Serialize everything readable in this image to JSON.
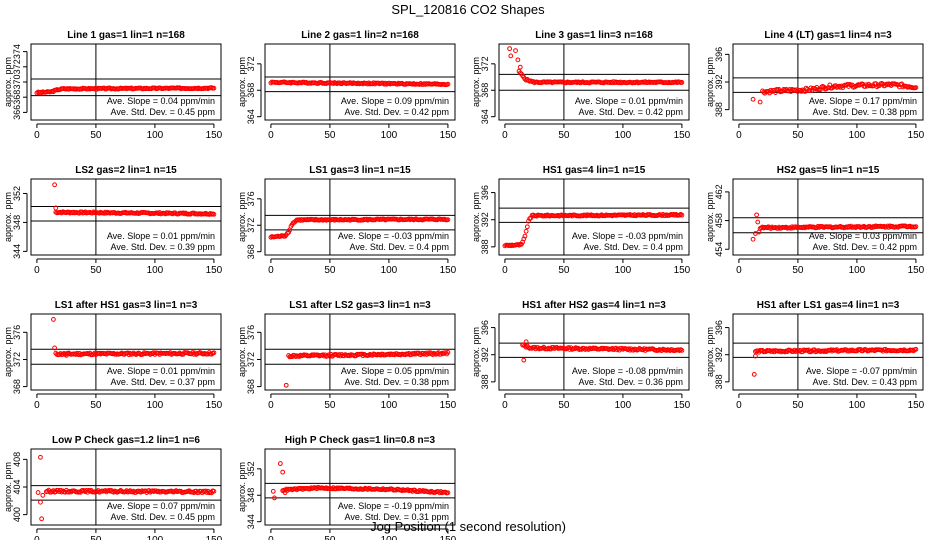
{
  "figure": {
    "title": "SPL_120816  CO2 Shapes",
    "xlabel": "Jog Position (1 second resolution)",
    "ylabel": "approx. ppm",
    "x_ticks": [
      0,
      50,
      100,
      150
    ],
    "x_tick_labels": [
      "0",
      "50",
      "100",
      "150"
    ]
  },
  "chart_data": [
    {
      "type": "scatter",
      "title": "Line 1 gas=1 lin=1 n=168",
      "ylim": [
        365,
        375
      ],
      "yticks": [
        366,
        368,
        370,
        372,
        374
      ],
      "hlines": [
        368.2,
        370.4
      ],
      "vline": 50,
      "series": [
        {
          "segments": [
            [
              0,
              368.6
            ],
            [
              12,
              368.7
            ],
            [
              18,
              369.0
            ],
            [
              22,
              369.1
            ],
            [
              150,
              369.2
            ]
          ],
          "noise": 0.08,
          "x_start": 0
        }
      ],
      "extra_points": [],
      "slope_text": "Ave. Slope = 0.04  ppm/min",
      "std_text": "Ave. Std. Dev. = 0.45  ppm"
    },
    {
      "type": "scatter",
      "title": "Line 2 gas=1 lin=2 n=168",
      "ylim": [
        363.5,
        375
      ],
      "yticks": [
        364,
        368,
        372
      ],
      "hlines": [
        367.8,
        370.0
      ],
      "vline": 50,
      "series": [
        {
          "segments": [
            [
              0,
              369.2
            ],
            [
              150,
              368.9
            ]
          ],
          "noise": 0.1,
          "x_start": 0
        }
      ],
      "extra_points": [],
      "slope_text": "Ave. Slope = 0.09  ppm/min",
      "std_text": "Ave. Std. Dev. = 0.42  ppm"
    },
    {
      "type": "scatter",
      "title": "Line 3 gas=1 lin=3 n=168",
      "ylim": [
        363.5,
        375
      ],
      "yticks": [
        364,
        368,
        372
      ],
      "hlines": [
        368.0,
        370.4
      ],
      "vline": 50,
      "series": [
        {
          "segments": [
            [
              12,
              370.8
            ],
            [
              18,
              369.6
            ],
            [
              25,
              369.2
            ],
            [
              150,
              369.2
            ]
          ],
          "noise": 0.1,
          "x_start": 12
        }
      ],
      "extra_points": [
        [
          4,
          374.3
        ],
        [
          5,
          373.2
        ],
        [
          9,
          374.0
        ],
        [
          11,
          372.6
        ],
        [
          13,
          371.5
        ]
      ],
      "slope_text": "Ave. Slope = 0.01  ppm/min",
      "std_text": "Ave. Std. Dev. = 0.42  ppm"
    },
    {
      "type": "scatter",
      "title": "Line 4 (LT) gas=1 lin=4 n=3",
      "ylim": [
        386.5,
        397.5
      ],
      "yticks": [
        388,
        392,
        396
      ],
      "hlines": [
        390.5,
        392.6
      ],
      "vline": 50,
      "series": [
        {
          "segments": [
            [
              20,
              390.6
            ],
            [
              60,
              390.9
            ],
            [
              80,
              391.4
            ],
            [
              130,
              391.6
            ],
            [
              150,
              391.3
            ]
          ],
          "noise": 0.25,
          "x_start": 20
        }
      ],
      "extra_points": [
        [
          12,
          389.5
        ],
        [
          18,
          389.1
        ]
      ],
      "slope_text": "Ave. Slope = 0.17  ppm/min",
      "std_text": "Ave. Std. Dev. = 0.38  ppm"
    },
    {
      "type": "scatter",
      "title": "LS2 gas=2 lin=1 n=15",
      "ylim": [
        343.5,
        354
      ],
      "yticks": [
        344,
        348,
        352
      ],
      "hlines": [
        348.2,
        350.2
      ],
      "vline": 50,
      "series": [
        {
          "segments": [
            [
              16,
              349.4
            ],
            [
              150,
              349.2
            ]
          ],
          "noise": 0.1,
          "x_start": 16
        }
      ],
      "extra_points": [
        [
          15,
          353.2
        ],
        [
          16,
          350.0
        ]
      ],
      "slope_text": "Ave. Slope = 0.01  ppm/min",
      "std_text": "Ave. Std. Dev. = 0.39  ppm"
    },
    {
      "type": "scatter",
      "title": "LS1 gas=3 lin=1 n=15",
      "ylim": [
        367.5,
        379
      ],
      "yticks": [
        368,
        372,
        376
      ],
      "hlines": [
        371.3,
        373.5
      ],
      "vline": 50,
      "series": [
        {
          "segments": [
            [
              0,
              370.2
            ],
            [
              12,
              370.4
            ],
            [
              15,
              371.0
            ],
            [
              18,
              372.2
            ],
            [
              22,
              372.8
            ],
            [
              150,
              372.9
            ]
          ],
          "noise": 0.1,
          "x_start": 0
        }
      ],
      "extra_points": [],
      "slope_text": "Ave. Slope = -0.03  ppm/min",
      "std_text": "Ave. Std. Dev. = 0.4  ppm"
    },
    {
      "type": "scatter",
      "title": "HS1 gas=4 lin=1 n=15",
      "ylim": [
        386.8,
        398
      ],
      "yticks": [
        388,
        392,
        396
      ],
      "hlines": [
        391.6,
        393.7
      ],
      "vline": 50,
      "series": [
        {
          "segments": [
            [
              0,
              388.2
            ],
            [
              14,
              388.3
            ],
            [
              17,
              389.5
            ],
            [
              20,
              391.8
            ],
            [
              23,
              392.6
            ],
            [
              150,
              392.7
            ]
          ],
          "noise": 0.1,
          "x_start": 0
        }
      ],
      "extra_points": [],
      "slope_text": "Ave. Slope = -0.03  ppm/min",
      "std_text": "Ave. Std. Dev. = 0.4  ppm"
    },
    {
      "type": "scatter",
      "title": "HS2 gas=5 lin=1 n=15",
      "ylim": [
        453.2,
        463.8
      ],
      "yticks": [
        454,
        458,
        462
      ],
      "hlines": [
        456.3,
        458.4
      ],
      "vline": 50,
      "series": [
        {
          "segments": [
            [
              18,
              457.0
            ],
            [
              150,
              457.2
            ]
          ],
          "noise": 0.12,
          "x_start": 18
        }
      ],
      "extra_points": [
        [
          12,
          455.4
        ],
        [
          14,
          456.2
        ],
        [
          15,
          458.8
        ],
        [
          16,
          457.8
        ],
        [
          17,
          456.4
        ]
      ],
      "slope_text": "Ave. Slope = 0.03  ppm/min",
      "std_text": "Ave. Std. Dev. = 0.42  ppm"
    },
    {
      "type": "scatter",
      "title": "LS1 after HS1 gas=3 lin=1 n=3",
      "ylim": [
        367.5,
        378.7
      ],
      "yticks": [
        368,
        372,
        376
      ],
      "hlines": [
        371.3,
        373.5
      ],
      "vline": 50,
      "series": [
        {
          "segments": [
            [
              16,
              372.8
            ],
            [
              150,
              372.9
            ]
          ],
          "noise": 0.15,
          "x_start": 16
        }
      ],
      "extra_points": [
        [
          14,
          377.9
        ],
        [
          15,
          373.7
        ],
        [
          25,
          372.6
        ]
      ],
      "slope_text": "Ave. Slope = 0.01  ppm/min",
      "std_text": "Ave. Std. Dev. = 0.37  ppm"
    },
    {
      "type": "scatter",
      "title": "LS1 after LS2 gas=3 lin=1 n=3",
      "ylim": [
        367.5,
        378.7
      ],
      "yticks": [
        368,
        372,
        376
      ],
      "hlines": [
        371.3,
        373.5
      ],
      "vline": 50,
      "series": [
        {
          "segments": [
            [
              15,
              372.5
            ],
            [
              150,
              372.9
            ]
          ],
          "noise": 0.15,
          "x_start": 15
        }
      ],
      "extra_points": [
        [
          13,
          368.2
        ]
      ],
      "slope_text": "Ave. Slope = 0.05  ppm/min",
      "std_text": "Ave. Std. Dev. = 0.38  ppm"
    },
    {
      "type": "scatter",
      "title": "HS1 after HS2 gas=4 lin=1 n=3",
      "ylim": [
        386.8,
        398
      ],
      "yticks": [
        388,
        392,
        396
      ],
      "hlines": [
        391.6,
        393.7
      ],
      "vline": 50,
      "series": [
        {
          "segments": [
            [
              15,
              393.4
            ],
            [
              22,
              393.0
            ],
            [
              150,
              392.7
            ]
          ],
          "noise": 0.15,
          "x_start": 15
        }
      ],
      "extra_points": [
        [
          16,
          391.2
        ],
        [
          18,
          393.9
        ]
      ],
      "slope_text": "Ave. Slope = -0.08  ppm/min",
      "std_text": "Ave. Std. Dev. = 0.36  ppm"
    },
    {
      "type": "scatter",
      "title": "HS1 after LS1 gas=4 lin=1 n=3",
      "ylim": [
        386.8,
        398
      ],
      "yticks": [
        388,
        392,
        396
      ],
      "hlines": [
        391.6,
        393.7
      ],
      "vline": 50,
      "series": [
        {
          "segments": [
            [
              14,
              392.5
            ],
            [
              150,
              392.7
            ]
          ],
          "noise": 0.15,
          "x_start": 14
        }
      ],
      "extra_points": [
        [
          13,
          389.1
        ],
        [
          14,
          391.8
        ]
      ],
      "slope_text": "Ave. Slope = -0.07  ppm/min",
      "std_text": "Ave. Std. Dev. = 0.43  ppm"
    },
    {
      "type": "scatter",
      "title": "Low P Check gas=1.2 lin=1 n=6",
      "ylim": [
        398.5,
        409.5
      ],
      "yticks": [
        400,
        404,
        408
      ],
      "hlines": [
        402.1,
        404.2
      ],
      "vline": 50,
      "series": [
        {
          "segments": [
            [
              8,
              403.4
            ],
            [
              150,
              403.3
            ]
          ],
          "noise": 0.15,
          "x_start": 8
        }
      ],
      "extra_points": [
        [
          1,
          403.2
        ],
        [
          3,
          408.3
        ],
        [
          3,
          401.8
        ],
        [
          4,
          399.4
        ],
        [
          5,
          402.8
        ]
      ],
      "slope_text": "Ave. Slope = 0.07  ppm/min",
      "std_text": "Ave. Std. Dev. = 0.45  ppm"
    },
    {
      "type": "scatter",
      "title": "High P Check gas=1 lin=0.8 n=3",
      "ylim": [
        343.5,
        355
      ],
      "yticks": [
        344,
        348,
        352
      ],
      "hlines": [
        347.6,
        349.8
      ],
      "vline": 50,
      "series": [
        {
          "segments": [
            [
              10,
              348.8
            ],
            [
              40,
              349.1
            ],
            [
              100,
              348.9
            ],
            [
              150,
              348.4
            ]
          ],
          "noise": 0.12,
          "x_start": 10
        }
      ],
      "extra_points": [
        [
          2,
          348.6
        ],
        [
          3,
          347.6
        ],
        [
          8,
          352.8
        ],
        [
          10,
          351.5
        ],
        [
          12,
          348.4
        ]
      ],
      "slope_text": "Ave. Slope = -0.19  ppm/min",
      "std_text": "Ave. Std. Dev. = 0.31  ppm"
    }
  ],
  "colors": {
    "points": "#ff0000",
    "axis": "#000000"
  }
}
